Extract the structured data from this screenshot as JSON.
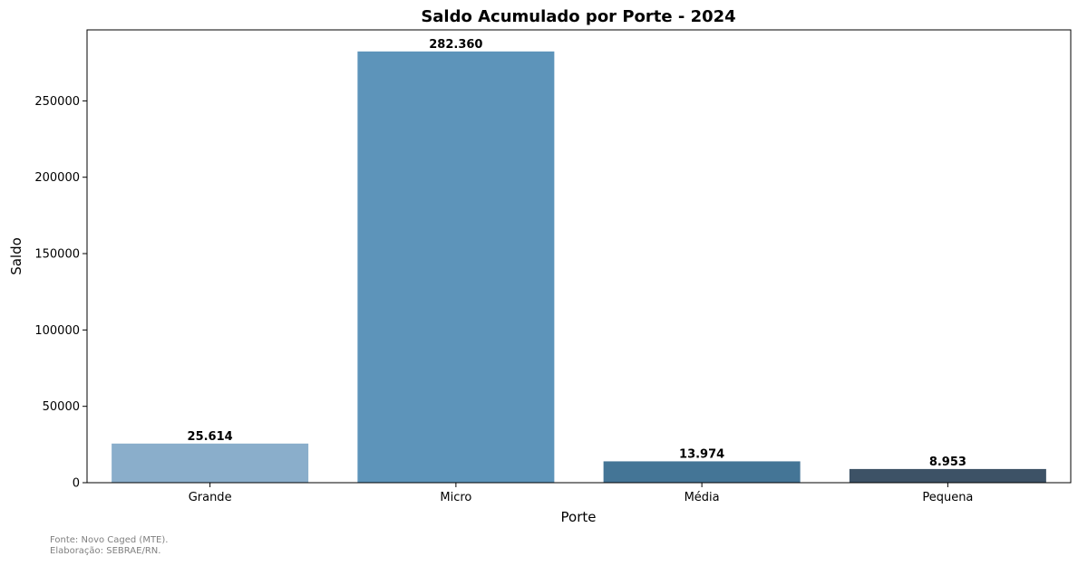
{
  "chart_data": {
    "type": "bar",
    "title": "Saldo Acumulado por Porte - 2024",
    "xlabel": "Porte",
    "ylabel": "Saldo",
    "categories": [
      "Grande",
      "Micro",
      "Média",
      "Pequena"
    ],
    "values": [
      25614,
      282360,
      13974,
      8953
    ],
    "value_labels": [
      "25.614",
      "282.360",
      "13.974",
      "8.953"
    ],
    "colors": [
      "#8aaecb",
      "#5d94ba",
      "#447596",
      "#3d5266"
    ],
    "ylim": [
      0,
      296478
    ],
    "yticks": [
      0,
      50000,
      100000,
      150000,
      200000,
      250000
    ],
    "ytick_labels": [
      "0",
      "50000",
      "100000",
      "150000",
      "200000",
      "250000"
    ],
    "grid": false,
    "legend": false
  },
  "footnote": {
    "source": "Fonte: Novo Caged (MTE).",
    "credit": "Elaboração: SEBRAE/RN."
  }
}
